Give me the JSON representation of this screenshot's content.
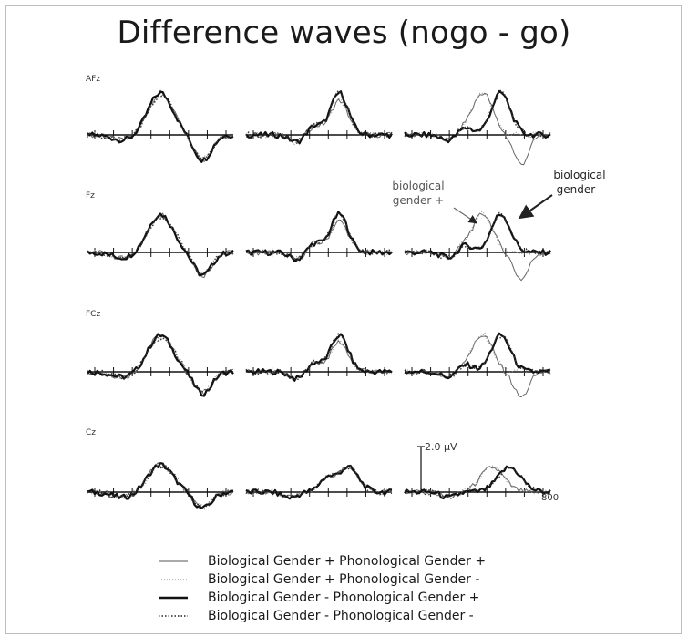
{
  "chart_data": {
    "type": "line",
    "title": "Difference waves (nogo - go)",
    "rows": [
      "AFz",
      "Fz",
      "FCz",
      "Cz"
    ],
    "annotations": {
      "left": [
        "biological",
        "gender +"
      ],
      "right": [
        "biological",
        "gender -"
      ]
    },
    "scale": {
      "amplitude_label": "2.0 μV",
      "time_end_label": "800"
    },
    "legend": [
      {
        "label": "Biological Gender + Phonological Gender +",
        "style": "thin-solid"
      },
      {
        "label": "Biological Gender + Phonological Gender -",
        "style": "dotted"
      },
      {
        "label": "Biological Gender - Phonological Gender +",
        "style": "thick-solid"
      },
      {
        "label": "Biological Gender - Phonological Gender -",
        "style": "thick-dotted"
      }
    ]
  }
}
